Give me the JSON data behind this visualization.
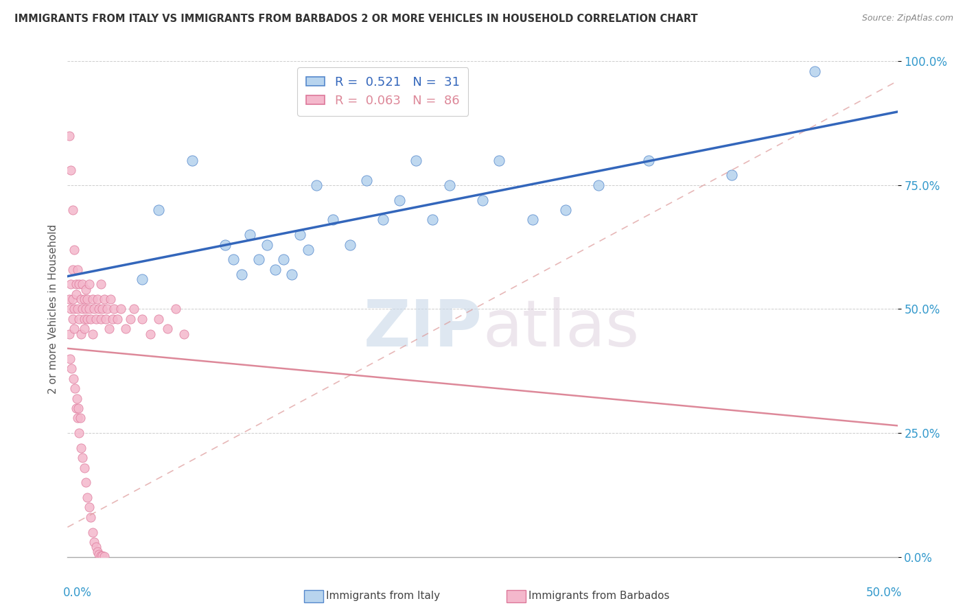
{
  "title": "IMMIGRANTS FROM ITALY VS IMMIGRANTS FROM BARBADOS 2 OR MORE VEHICLES IN HOUSEHOLD CORRELATION CHART",
  "source": "Source: ZipAtlas.com",
  "ylabel": "2 or more Vehicles in Household",
  "ytick_values": [
    0,
    25,
    50,
    75,
    100
  ],
  "xlim": [
    0,
    50
  ],
  "ylim": [
    0,
    100
  ],
  "italy_color": "#b8d4ee",
  "italy_edge_color": "#5588cc",
  "italy_line_color": "#3366bb",
  "barbados_color": "#f4b8cc",
  "barbados_edge_color": "#dd7799",
  "barbados_line_color": "#dd8899",
  "watermark_zip": "ZIP",
  "watermark_atlas": "atlas",
  "italy_x": [
    4.5,
    5.5,
    7.5,
    9.5,
    10.0,
    10.5,
    11.0,
    11.5,
    12.0,
    12.5,
    13.0,
    13.5,
    14.0,
    14.5,
    15.0,
    16.0,
    17.0,
    18.0,
    19.0,
    20.0,
    21.0,
    22.0,
    23.0,
    25.0,
    26.0,
    28.0,
    30.0,
    32.0,
    35.0,
    40.0,
    45.0
  ],
  "italy_y": [
    56,
    70,
    80,
    63,
    60,
    57,
    65,
    60,
    63,
    58,
    60,
    57,
    65,
    62,
    75,
    68,
    63,
    76,
    68,
    72,
    80,
    68,
    75,
    72,
    80,
    68,
    70,
    75,
    80,
    77,
    98
  ],
  "barbados_x": [
    0.1,
    0.1,
    0.2,
    0.2,
    0.3,
    0.3,
    0.3,
    0.4,
    0.4,
    0.5,
    0.5,
    0.6,
    0.6,
    0.7,
    0.7,
    0.8,
    0.8,
    0.9,
    0.9,
    1.0,
    1.0,
    1.0,
    1.1,
    1.1,
    1.2,
    1.2,
    1.3,
    1.3,
    1.4,
    1.5,
    1.5,
    1.6,
    1.7,
    1.8,
    1.9,
    2.0,
    2.0,
    2.1,
    2.2,
    2.3,
    2.4,
    2.5,
    2.6,
    2.7,
    2.8,
    3.0,
    3.2,
    3.5,
    3.8,
    4.0,
    4.5,
    5.0,
    5.5,
    6.0,
    6.5,
    7.0,
    0.1,
    0.2,
    0.3,
    0.4,
    0.5,
    0.6,
    0.7,
    0.8,
    0.9,
    1.0,
    1.1,
    1.2,
    1.3,
    1.4,
    1.5,
    1.6,
    1.7,
    1.8,
    1.9,
    2.0,
    2.1,
    2.2,
    0.15,
    0.25,
    0.35,
    0.45,
    0.55,
    0.65,
    0.75
  ],
  "barbados_y": [
    45,
    52,
    50,
    55,
    48,
    52,
    58,
    50,
    46,
    53,
    55,
    50,
    58,
    55,
    48,
    52,
    45,
    50,
    55,
    48,
    52,
    46,
    50,
    54,
    48,
    52,
    50,
    55,
    48,
    52,
    45,
    50,
    48,
    52,
    50,
    48,
    55,
    50,
    52,
    48,
    50,
    46,
    52,
    48,
    50,
    48,
    50,
    46,
    48,
    50,
    48,
    45,
    48,
    46,
    50,
    45,
    85,
    78,
    70,
    62,
    30,
    28,
    25,
    22,
    20,
    18,
    15,
    12,
    10,
    8,
    5,
    3,
    2,
    1,
    0.5,
    0.3,
    0.2,
    0.1,
    40,
    38,
    36,
    34,
    32,
    30,
    28
  ],
  "ref_line_slope": 1.8,
  "ref_line_intercept": 6
}
